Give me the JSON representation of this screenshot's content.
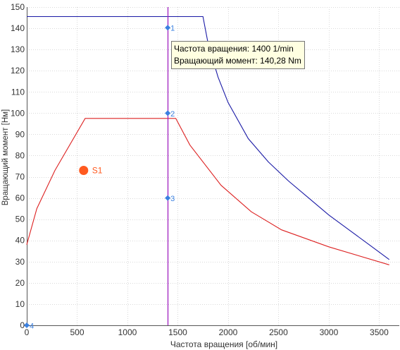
{
  "chart_data": {
    "type": "line",
    "xlabel": "Частота вращения [об/мин]",
    "ylabel": "Вращающий момент [Нм]",
    "xlim": [
      0,
      3700
    ],
    "ylim": [
      0,
      150
    ],
    "x_ticks": [
      0,
      500,
      1000,
      1500,
      2000,
      2500,
      3000,
      3500
    ],
    "y_ticks": [
      0,
      10,
      20,
      30,
      40,
      50,
      60,
      70,
      80,
      90,
      100,
      110,
      120,
      130,
      140,
      150
    ],
    "grid": true,
    "series": [
      {
        "color": "#1a1aa6",
        "x": [
          0,
          1750,
          1800,
          1900,
          2000,
          2200,
          2400,
          2600,
          2800,
          3000,
          3200,
          3400,
          3600
        ],
        "y": [
          145.5,
          145.5,
          133,
          117,
          105,
          88,
          77,
          68,
          60,
          52,
          45,
          38,
          31
        ]
      },
      {
        "color": "#dd2222",
        "x": [
          0,
          100,
          280,
          580,
          1480,
          1620,
          1930,
          2230,
          2530,
          3000,
          3600
        ],
        "y": [
          38,
          55,
          73,
          97.5,
          97.5,
          85,
          66,
          53.5,
          45,
          37,
          28.5
        ]
      }
    ],
    "cursor_line": {
      "x": 1400,
      "color": "#a020c0"
    },
    "markers": [
      {
        "label": "1",
        "x": 1400,
        "y": 140.28
      },
      {
        "label": "2",
        "x": 1400,
        "y": 100
      },
      {
        "label": "3",
        "x": 1400,
        "y": 60
      },
      {
        "label": "4",
        "x": 0,
        "y": 0
      }
    ],
    "points": [
      {
        "label": "S1",
        "x": 565,
        "y": 73,
        "color": "#ff5a1f"
      }
    ]
  },
  "tooltip": {
    "line1": "Частота вращения: 1400 1/min",
    "line2": "Вращающий момент: 140,28 Nm"
  },
  "colors": {
    "grid": "#d9d9d9",
    "axis": "#555555",
    "marker": "#3a80e0"
  }
}
